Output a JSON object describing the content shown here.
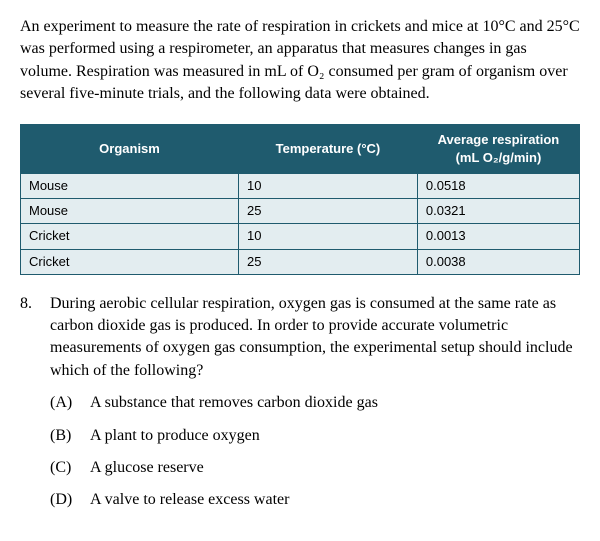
{
  "intro": "An experiment to measure the rate of respiration in crickets and mice at 10°C and 25°C was performed using a respirometer, an apparatus that measures changes in gas volume. Respiration was measured in mL of O₂ consumed per gram of organism over several five-minute trials, and the following data were obtained.",
  "table": {
    "headers": {
      "organism": "Organism",
      "temperature": "Temperature (°C)",
      "respiration_line1": "Average respiration",
      "respiration_line2": "(mL O₂/g/min)"
    },
    "rows": [
      {
        "organism": "Mouse",
        "temperature": "10",
        "respiration": "0.0518"
      },
      {
        "organism": "Mouse",
        "temperature": "25",
        "respiration": "0.0321"
      },
      {
        "organism": "Cricket",
        "temperature": "10",
        "respiration": "0.0013"
      },
      {
        "organism": "Cricket",
        "temperature": "25",
        "respiration": "0.0038"
      }
    ],
    "header_bg": "#1f5b6e",
    "header_color": "#ffffff",
    "cell_bg": "#e3edf0",
    "border_color": "#1f5b6e",
    "col_widths": [
      "39%",
      "32%",
      "29%"
    ]
  },
  "question": {
    "number": "8.",
    "stem": "During aerobic cellular respiration, oxygen gas is consumed at the same rate as carbon dioxide gas is produced. In order to provide accurate volumetric measurements of oxygen gas consumption, the experimental setup should include which of the following?",
    "options": [
      {
        "label": "(A)",
        "text": "A substance that removes carbon dioxide gas"
      },
      {
        "label": "(B)",
        "text": "A plant to produce oxygen"
      },
      {
        "label": "(C)",
        "text": "A glucose reserve"
      },
      {
        "label": "(D)",
        "text": "A valve to release excess water"
      }
    ]
  }
}
